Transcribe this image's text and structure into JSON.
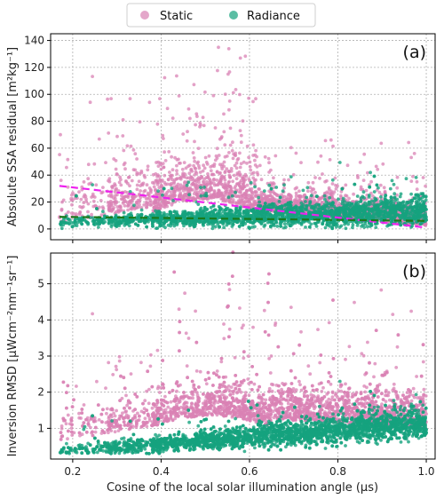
{
  "legend": {
    "items": [
      {
        "label": "Static",
        "color": "#d982b4"
      },
      {
        "label": "Radiance",
        "color": "#15a27e"
      }
    ]
  },
  "chart_data": [
    {
      "type": "scatter",
      "panel_label": "(a)",
      "ylabel": "Absolute SSA residual [m²kg⁻¹]",
      "xlim": [
        0.15,
        1.02
      ],
      "ylim": [
        -8,
        145
      ],
      "yticks": [
        0,
        20,
        40,
        60,
        80,
        100,
        120,
        140
      ],
      "xticks": [
        0.2,
        0.4,
        0.6,
        0.8,
        1.0
      ],
      "show_x_tick_labels": false,
      "grid": true,
      "series": [
        {
          "name": "Static",
          "color": "#d982b4",
          "note_points": [
            [
              0.18,
              30
            ],
            [
              0.25,
              12
            ],
            [
              0.32,
              60
            ],
            [
              0.4,
              90
            ],
            [
              0.45,
              128
            ],
            [
              0.5,
              70
            ],
            [
              0.55,
              45
            ],
            [
              0.6,
              30
            ],
            [
              0.65,
              22
            ],
            [
              0.7,
              18
            ],
            [
              0.8,
              12
            ],
            [
              0.9,
              8
            ],
            [
              1.0,
              3
            ]
          ]
        },
        {
          "name": "Radiance",
          "color": "#15a27e",
          "note_points": [
            [
              0.2,
              5
            ],
            [
              0.3,
              6
            ],
            [
              0.4,
              8
            ],
            [
              0.5,
              9
            ],
            [
              0.6,
              10
            ],
            [
              0.7,
              12
            ],
            [
              0.8,
              14
            ],
            [
              0.9,
              15
            ],
            [
              1.0,
              16
            ]
          ]
        }
      ],
      "fit_lines": [
        {
          "series": "Static",
          "color": "#ee22ee",
          "style": "dashed",
          "x": [
            0.17,
            1.0
          ],
          "y": [
            32,
            1
          ]
        },
        {
          "series": "Radiance",
          "color": "#1a7a1a",
          "style": "dashed",
          "x": [
            0.17,
            1.0
          ],
          "y": [
            9,
            6
          ]
        }
      ]
    },
    {
      "type": "scatter",
      "panel_label": "(b)",
      "ylabel": "Inversion RMSD [μWcm⁻²nm⁻¹sr⁻¹]",
      "xlabel": "Cosine of the local solar illumination angle (μs)",
      "xlim": [
        0.15,
        1.02
      ],
      "ylim": [
        0.15,
        5.85
      ],
      "yticks": [
        1,
        2,
        3,
        4,
        5
      ],
      "xticks": [
        0.2,
        0.4,
        0.6,
        0.8,
        1.0
      ],
      "xticklabels": [
        "0.2",
        "0.4",
        "0.6",
        "0.8",
        "1.0"
      ],
      "grid": true,
      "series": [
        {
          "name": "Static",
          "color": "#d982b4",
          "note_points": [
            [
              0.2,
              1.4
            ],
            [
              0.3,
              1.2
            ],
            [
              0.4,
              2.0
            ],
            [
              0.45,
              4.8
            ],
            [
              0.5,
              2.2
            ],
            [
              0.6,
              5.6
            ],
            [
              0.65,
              2.0
            ],
            [
              0.7,
              1.8
            ],
            [
              0.8,
              1.6
            ],
            [
              0.9,
              1.4
            ],
            [
              1.0,
              1.5
            ]
          ]
        },
        {
          "name": "Radiance",
          "color": "#15a27e",
          "note_points": [
            [
              0.2,
              0.4
            ],
            [
              0.3,
              0.55
            ],
            [
              0.4,
              0.7
            ],
            [
              0.5,
              0.8
            ],
            [
              0.6,
              0.9
            ],
            [
              0.7,
              1.0
            ],
            [
              0.8,
              1.1
            ],
            [
              0.9,
              1.15
            ],
            [
              1.0,
              1.2
            ]
          ]
        }
      ]
    }
  ]
}
